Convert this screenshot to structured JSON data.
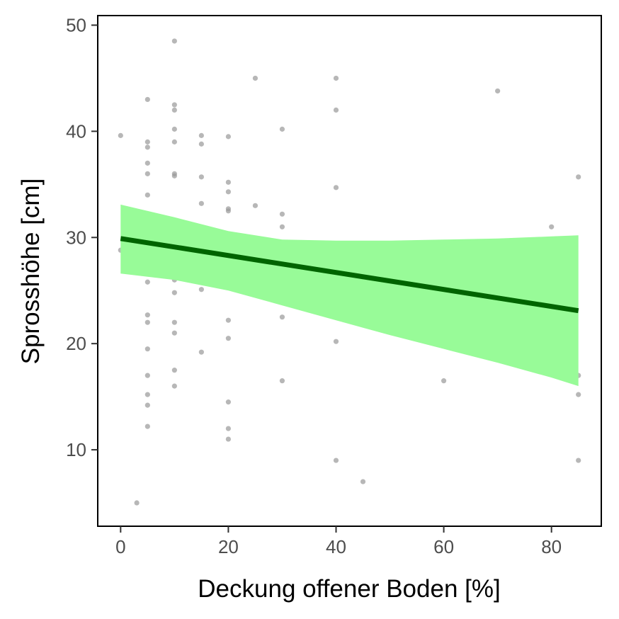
{
  "chart_data": {
    "type": "scatter",
    "xlabel": "Deckung offener Boden [%]",
    "ylabel": "Sprosshöhe [cm]",
    "xlim": [
      -4.25,
      89.25
    ],
    "ylim": [
      2.8,
      50.9
    ],
    "x_ticks": [
      0,
      20,
      40,
      60,
      80
    ],
    "y_ticks": [
      10,
      20,
      30,
      40,
      50
    ],
    "grid": false,
    "points": [
      {
        "x": 0,
        "y": 39.6
      },
      {
        "x": 0,
        "y": 28.8
      },
      {
        "x": 3,
        "y": 5.0
      },
      {
        "x": 5,
        "y": 43.0
      },
      {
        "x": 5,
        "y": 39.0
      },
      {
        "x": 5,
        "y": 38.5
      },
      {
        "x": 5,
        "y": 37.0
      },
      {
        "x": 5,
        "y": 36.0
      },
      {
        "x": 5,
        "y": 34.0
      },
      {
        "x": 5,
        "y": 32.0
      },
      {
        "x": 5,
        "y": 31.4
      },
      {
        "x": 5,
        "y": 30.0
      },
      {
        "x": 5,
        "y": 25.8
      },
      {
        "x": 5,
        "y": 22.7
      },
      {
        "x": 5,
        "y": 22.0
      },
      {
        "x": 5,
        "y": 19.5
      },
      {
        "x": 5,
        "y": 17.0
      },
      {
        "x": 5,
        "y": 15.2
      },
      {
        "x": 5,
        "y": 14.2
      },
      {
        "x": 5,
        "y": 12.2
      },
      {
        "x": 10,
        "y": 48.5
      },
      {
        "x": 10,
        "y": 42.5
      },
      {
        "x": 10,
        "y": 42.0
      },
      {
        "x": 10,
        "y": 40.2
      },
      {
        "x": 10,
        "y": 39.0
      },
      {
        "x": 10,
        "y": 36.0
      },
      {
        "x": 10,
        "y": 35.8
      },
      {
        "x": 10,
        "y": 30.2
      },
      {
        "x": 10,
        "y": 29.8
      },
      {
        "x": 10,
        "y": 26.0
      },
      {
        "x": 10,
        "y": 24.8
      },
      {
        "x": 10,
        "y": 22.0
      },
      {
        "x": 10,
        "y": 21.0
      },
      {
        "x": 10,
        "y": 17.5
      },
      {
        "x": 10,
        "y": 16.0
      },
      {
        "x": 15,
        "y": 39.6
      },
      {
        "x": 15,
        "y": 38.8
      },
      {
        "x": 15,
        "y": 35.7
      },
      {
        "x": 15,
        "y": 33.2
      },
      {
        "x": 15,
        "y": 30.5
      },
      {
        "x": 15,
        "y": 28.6
      },
      {
        "x": 15,
        "y": 25.1
      },
      {
        "x": 15,
        "y": 19.2
      },
      {
        "x": 20,
        "y": 39.5
      },
      {
        "x": 20,
        "y": 35.2
      },
      {
        "x": 20,
        "y": 34.3
      },
      {
        "x": 20,
        "y": 32.7
      },
      {
        "x": 20,
        "y": 32.5
      },
      {
        "x": 20,
        "y": 22.2
      },
      {
        "x": 20,
        "y": 20.5
      },
      {
        "x": 20,
        "y": 14.5
      },
      {
        "x": 20,
        "y": 12.0
      },
      {
        "x": 20,
        "y": 11.0
      },
      {
        "x": 25,
        "y": 45.0
      },
      {
        "x": 25,
        "y": 33.0
      },
      {
        "x": 25,
        "y": 25.5
      },
      {
        "x": 30,
        "y": 40.2
      },
      {
        "x": 30,
        "y": 32.2
      },
      {
        "x": 30,
        "y": 31.0
      },
      {
        "x": 30,
        "y": 26.8
      },
      {
        "x": 30,
        "y": 22.5
      },
      {
        "x": 30,
        "y": 16.5
      },
      {
        "x": 40,
        "y": 45.0
      },
      {
        "x": 40,
        "y": 42.0
      },
      {
        "x": 40,
        "y": 34.7
      },
      {
        "x": 40,
        "y": 20.2
      },
      {
        "x": 40,
        "y": 9.0
      },
      {
        "x": 45,
        "y": 7.0
      },
      {
        "x": 60,
        "y": 21.0
      },
      {
        "x": 60,
        "y": 20.8
      },
      {
        "x": 60,
        "y": 16.5
      },
      {
        "x": 70,
        "y": 43.8
      },
      {
        "x": 80,
        "y": 31.0
      },
      {
        "x": 85,
        "y": 35.7
      },
      {
        "x": 85,
        "y": 17.0
      },
      {
        "x": 85,
        "y": 15.2
      },
      {
        "x": 85,
        "y": 9.0
      }
    ],
    "regression_line": {
      "x": [
        0,
        85
      ],
      "y": [
        29.9,
        23.1
      ]
    },
    "confidence_band": {
      "x": [
        0,
        10,
        20,
        30,
        40,
        50,
        60,
        70,
        80,
        85
      ],
      "lower": [
        26.6,
        26.0,
        25.0,
        23.6,
        22.2,
        20.8,
        19.5,
        18.2,
        16.8,
        16.0
      ],
      "upper": [
        33.1,
        31.9,
        30.6,
        29.8,
        29.7,
        29.7,
        29.8,
        29.9,
        30.1,
        30.2
      ]
    },
    "colors": {
      "points": "#999999",
      "line": "#006400",
      "band": "#98fb98",
      "axis": "#000000",
      "tick_text": "#4d4d4d"
    }
  }
}
